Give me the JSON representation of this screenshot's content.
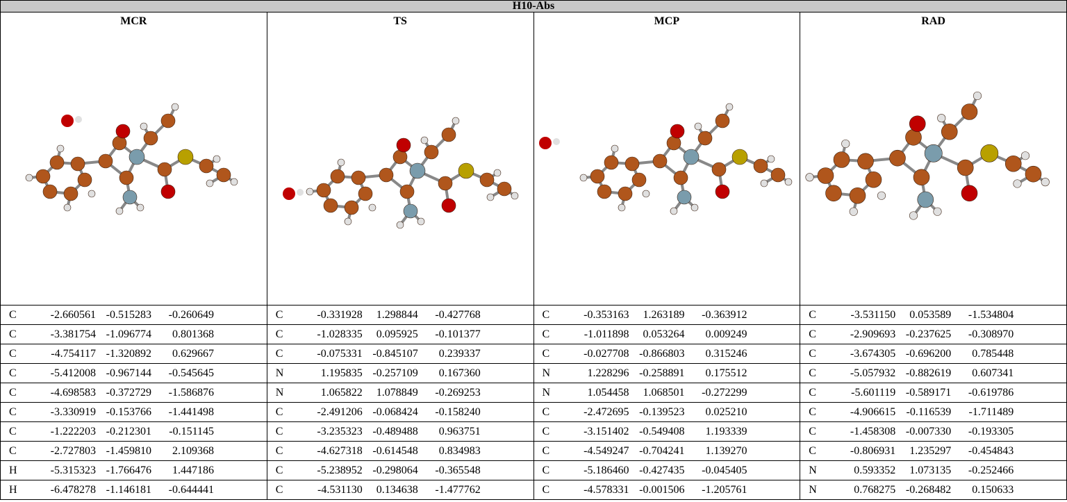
{
  "table": {
    "title": "H10-Abs",
    "columns": [
      {
        "name": "MCR",
        "atoms": [
          [
            "C",
            "-2.660561",
            "-0.515283",
            "-0.260649"
          ],
          [
            "C",
            "-3.381754",
            "-1.096774",
            "0.801368"
          ],
          [
            "C",
            "-4.754117",
            "-1.320892",
            "0.629667"
          ],
          [
            "C",
            "-5.412008",
            "-0.967144",
            "-0.545645"
          ],
          [
            "C",
            "-4.698583",
            "-0.372729",
            "-1.586876"
          ],
          [
            "C",
            "-3.330919",
            "-0.153766",
            "-1.441498"
          ],
          [
            "C",
            "-1.222203",
            "-0.212301",
            "-0.151145"
          ],
          [
            "C",
            "-2.727803",
            "-1.459810",
            "2.109368"
          ],
          [
            "H",
            "-5.315323",
            "-1.766476",
            "1.447186"
          ],
          [
            "H",
            "-6.478278",
            "-1.146181",
            "-0.644441"
          ]
        ]
      },
      {
        "name": "TS",
        "atoms": [
          [
            "C",
            "-0.331928",
            "1.298844",
            "-0.427768"
          ],
          [
            "C",
            "-1.028335",
            "0.095925",
            "-0.101377"
          ],
          [
            "C",
            "-0.075331",
            "-0.845107",
            "0.239337"
          ],
          [
            "N",
            "1.195835",
            "-0.257109",
            "0.167360"
          ],
          [
            "N",
            "1.065822",
            "1.078849",
            "-0.269253"
          ],
          [
            "C",
            "-2.491206",
            "-0.068424",
            "-0.158240"
          ],
          [
            "C",
            "-3.235323",
            "-0.489488",
            "0.963751"
          ],
          [
            "C",
            "-4.627318",
            "-0.614548",
            "0.834983"
          ],
          [
            "C",
            "-5.238952",
            "-0.298064",
            "-0.365548"
          ],
          [
            "C",
            "-4.531130",
            "0.134638",
            "-1.477762"
          ]
        ]
      },
      {
        "name": "MCP",
        "atoms": [
          [
            "C",
            "-0.353163",
            "1.263189",
            "-0.363912"
          ],
          [
            "C",
            "-1.011898",
            "0.053264",
            "0.009249"
          ],
          [
            "C",
            "-0.027708",
            "-0.866803",
            "0.315246"
          ],
          [
            "N",
            "1.228296",
            "-0.258891",
            "0.175512"
          ],
          [
            "N",
            "1.054458",
            "1.068501",
            "-0.272299"
          ],
          [
            "C",
            "-2.472695",
            "-0.139523",
            "0.025210"
          ],
          [
            "C",
            "-3.151402",
            "-0.549408",
            "1.193339"
          ],
          [
            "C",
            "-4.549247",
            "-0.704241",
            "1.139270"
          ],
          [
            "C",
            "-5.186460",
            "-0.427435",
            "-0.045405"
          ],
          [
            "C",
            "-4.578331",
            "-0.001506",
            "-1.205761"
          ]
        ]
      },
      {
        "name": "RAD",
        "atoms": [
          [
            "C",
            "-3.531150",
            "0.053589",
            "-1.534804"
          ],
          [
            "C",
            "-2.909693",
            "-0.237625",
            "-0.308970"
          ],
          [
            "C",
            "-3.674305",
            "-0.696200",
            "0.785448"
          ],
          [
            "C",
            "-5.057932",
            "-0.882619",
            "0.607341"
          ],
          [
            "C",
            "-5.601119",
            "-0.589171",
            "-0.619786"
          ],
          [
            "C",
            "-4.906615",
            "-0.116539",
            "-1.711489"
          ],
          [
            "C",
            "-1.458308",
            "-0.007330",
            "-0.193305"
          ],
          [
            "C",
            "-0.806931",
            "1.235297",
            "-0.454843"
          ],
          [
            "N",
            "0.593352",
            "1.073135",
            "-0.252466"
          ],
          [
            "N",
            "0.768275",
            "-0.268482",
            "0.150633"
          ]
        ]
      }
    ]
  }
}
